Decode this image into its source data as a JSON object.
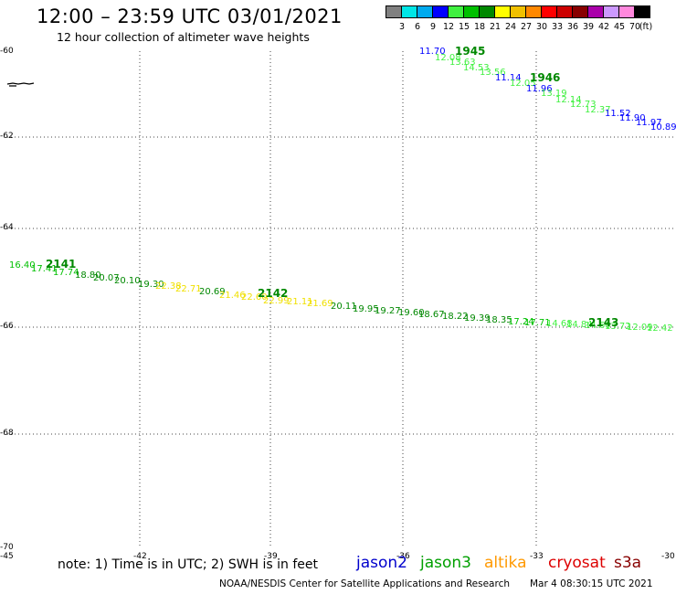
{
  "title": "12:00 – 23:59 UTC 03/01/2021",
  "subtitle": "12 hour collection of altimeter wave heights",
  "legend": {
    "unit": "(ft)",
    "bins": [
      {
        "label": "3",
        "color": "#808080"
      },
      {
        "label": "6",
        "color": "#00e6e6"
      },
      {
        "label": "9",
        "color": "#00aaee"
      },
      {
        "label": "12",
        "color": "#0000ff"
      },
      {
        "label": "15",
        "color": "#40f040"
      },
      {
        "label": "18",
        "color": "#00c000"
      },
      {
        "label": "21",
        "color": "#008800"
      },
      {
        "label": "24",
        "color": "#ffff00"
      },
      {
        "label": "27",
        "color": "#f0c000"
      },
      {
        "label": "30",
        "color": "#ff8800"
      },
      {
        "label": "33",
        "color": "#ff0000"
      },
      {
        "label": "36",
        "color": "#cc0000"
      },
      {
        "label": "39",
        "color": "#880000"
      },
      {
        "label": "42",
        "color": "#aa00aa"
      },
      {
        "label": "45",
        "color": "#cc99ff"
      },
      {
        "label": "70",
        "color": "#ff88dd"
      },
      {
        "label": "",
        "color": "#000000"
      }
    ]
  },
  "axes": {
    "lon_labels": [
      "-45",
      "-42",
      "-39",
      "-36",
      "-33",
      "-30"
    ],
    "lat_labels": [
      "-60",
      "-62",
      "-64",
      "-66",
      "-68",
      "-70"
    ]
  },
  "passes": [
    {
      "time": "1945",
      "color": "#008800"
    },
    {
      "time": "1946",
      "color": "#008800"
    },
    {
      "time": "2141",
      "color": "#008800"
    },
    {
      "time": "2142",
      "color": "#008800"
    },
    {
      "time": "2143",
      "color": "#008800"
    }
  ],
  "observations": [
    {
      "text": "11.70",
      "color": "#0000ff"
    },
    {
      "text": "12.08",
      "color": "#40f040"
    },
    {
      "text": "13.63",
      "color": "#40f040"
    },
    {
      "text": "14.53",
      "color": "#40f040"
    },
    {
      "text": "13.56",
      "color": "#40f040"
    },
    {
      "text": "11.14",
      "color": "#0000ff"
    },
    {
      "text": "12.05",
      "color": "#40f040"
    },
    {
      "text": "11.96",
      "color": "#0000ff"
    },
    {
      "text": "13.19",
      "color": "#40f040"
    },
    {
      "text": "12.14",
      "color": "#40f040"
    },
    {
      "text": "12.73",
      "color": "#40f040"
    },
    {
      "text": "12.37",
      "color": "#40f040"
    },
    {
      "text": "11.52",
      "color": "#0000ff"
    },
    {
      "text": "11.90",
      "color": "#0000ff"
    },
    {
      "text": "11.97",
      "color": "#0000ff"
    },
    {
      "text": "10.89",
      "color": "#0000ff"
    },
    {
      "text": "16.40",
      "color": "#00c000"
    },
    {
      "text": "17.41",
      "color": "#00c000"
    },
    {
      "text": "17.74",
      "color": "#00c000"
    },
    {
      "text": "18.80",
      "color": "#008800"
    },
    {
      "text": "20.07",
      "color": "#008800"
    },
    {
      "text": "20.10",
      "color": "#008800"
    },
    {
      "text": "19.30",
      "color": "#008800"
    },
    {
      "text": "22.38",
      "color": "#f0e000"
    },
    {
      "text": "22.71",
      "color": "#f0e000"
    },
    {
      "text": "20.69",
      "color": "#008800"
    },
    {
      "text": "21.46",
      "color": "#f0e000"
    },
    {
      "text": "22.60",
      "color": "#f0e000"
    },
    {
      "text": "22.99",
      "color": "#f0e000"
    },
    {
      "text": "21.11",
      "color": "#f0e000"
    },
    {
      "text": "21.69",
      "color": "#f0e000"
    },
    {
      "text": "20.11",
      "color": "#008800"
    },
    {
      "text": "19.95",
      "color": "#008800"
    },
    {
      "text": "19.27",
      "color": "#008800"
    },
    {
      "text": "19.60",
      "color": "#008800"
    },
    {
      "text": "18.67",
      "color": "#008800"
    },
    {
      "text": "18.22",
      "color": "#008800"
    },
    {
      "text": "19.39",
      "color": "#008800"
    },
    {
      "text": "18.35",
      "color": "#008800"
    },
    {
      "text": "17.24",
      "color": "#00c000"
    },
    {
      "text": "17.71",
      "color": "#00c000"
    },
    {
      "text": "14.68",
      "color": "#40f040"
    },
    {
      "text": "14.84",
      "color": "#40f040"
    },
    {
      "text": "14.60",
      "color": "#40f040"
    },
    {
      "text": "13.72",
      "color": "#40f040"
    },
    {
      "text": "12.09",
      "color": "#40f040"
    },
    {
      "text": "12.42",
      "color": "#40f040"
    }
  ],
  "footer": {
    "note": "note:  1) Time is in UTC;  2) SWH is in feet",
    "satellites": [
      {
        "name": "jason2",
        "color": "#0000cc"
      },
      {
        "name": "jason3",
        "color": "#00a000"
      },
      {
        "name": "altika",
        "color": "#ff9900"
      },
      {
        "name": "cryosat",
        "color": "#dd0000"
      },
      {
        "name": "s3a",
        "color": "#880000"
      }
    ],
    "credit": "NOAA/NESDIS Center for Satellite Applications and Research",
    "timestamp": "Mar  4 08:30:15 UTC 2021"
  }
}
